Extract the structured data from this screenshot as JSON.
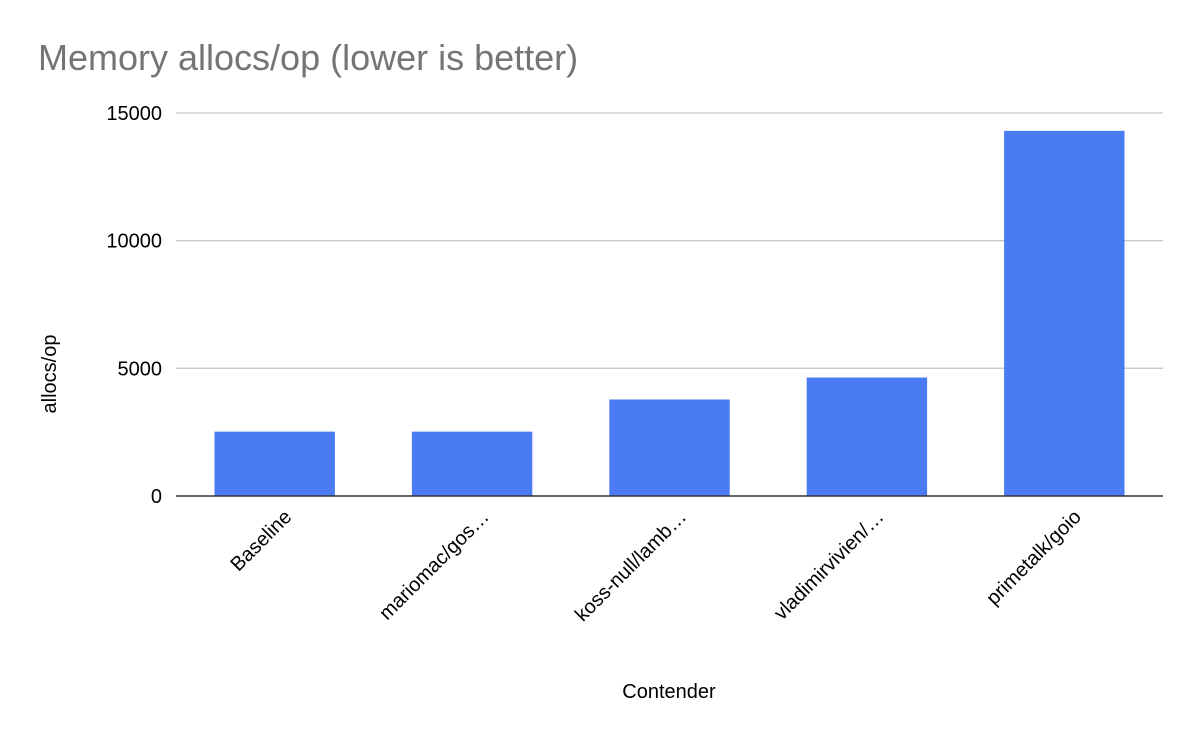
{
  "chart_data": {
    "type": "bar",
    "title": "Memory allocs/op (lower is better)",
    "xlabel": "Contender",
    "ylabel": "allocs/op",
    "categories": [
      "Baseline",
      "mariomac/gos…",
      "koss-null/lamb…",
      "vladimirvivien/…",
      "primetalk/goio"
    ],
    "series": [
      {
        "values": [
          2520,
          2520,
          3780,
          4640,
          14300
        ]
      }
    ],
    "ylim": [
      0,
      15000
    ],
    "yticks": [
      0,
      5000,
      10000,
      15000
    ],
    "grid": true,
    "legend": "none",
    "colors": {
      "bar": "#4a7bf2",
      "title": "#757575",
      "grid": "#c8c8c8",
      "axis": "#333333"
    }
  }
}
